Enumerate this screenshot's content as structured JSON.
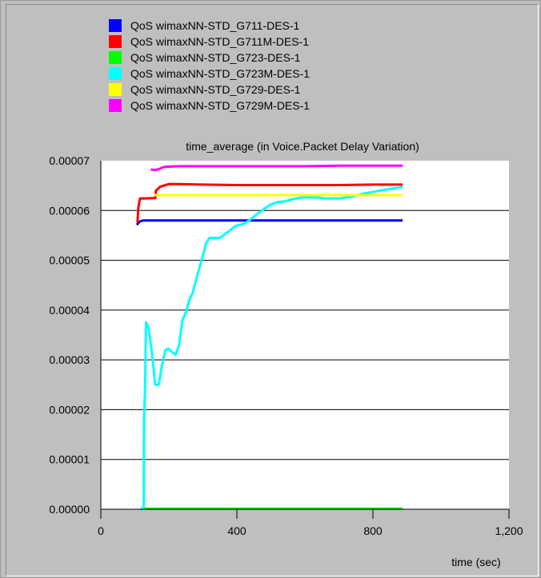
{
  "chart_data": {
    "type": "line",
    "title": "time_average (in Voice.Packet Delay Variation)",
    "xlabel": "time (sec)",
    "ylabel": "",
    "xlim": [
      0,
      1200
    ],
    "ylim": [
      0,
      7e-05
    ],
    "x_ticks": [
      0,
      400,
      800,
      1200
    ],
    "x_tick_labels": [
      "0",
      "400",
      "800",
      "1,200"
    ],
    "y_ticks": [
      0,
      1e-05,
      2e-05,
      3e-05,
      4e-05,
      5e-05,
      6e-05,
      7e-05
    ],
    "y_tick_labels": [
      "0.00000",
      "0.00001",
      "0.00002",
      "0.00003",
      "0.00004",
      "0.00005",
      "0.00006",
      "0.00007"
    ],
    "grid": "horizontal",
    "legend_position": "top",
    "series": [
      {
        "name": "QoS wimaxNN-STD_G711-DES-1",
        "color": "#0000ff",
        "x": [
          108,
          115,
          125,
          140,
          200,
          400,
          600,
          884
        ],
        "y": [
          5.73e-05,
          5.78e-05,
          5.8e-05,
          5.8e-05,
          5.8e-05,
          5.8e-05,
          5.8e-05,
          5.8e-05
        ]
      },
      {
        "name": "QoS wimaxNN-STD_G711M-DES-1",
        "color": "#ff0000",
        "x": [
          108,
          110,
          115,
          120,
          160,
          162,
          175,
          190,
          200,
          220,
          300,
          400,
          500,
          600,
          700,
          800,
          884
        ],
        "y": [
          5.78e-05,
          6.05e-05,
          6.24e-05,
          6.24e-05,
          6.25e-05,
          6.4e-05,
          6.48e-05,
          6.51e-05,
          6.53e-05,
          6.53e-05,
          6.52e-05,
          6.51e-05,
          6.51e-05,
          6.51e-05,
          6.51e-05,
          6.52e-05,
          6.52e-05
        ]
      },
      {
        "name": "QoS wimaxNN-STD_G723-DES-1",
        "color": "#00ff00",
        "x": [
          120,
          300,
          600,
          884
        ],
        "y": [
          1e-07,
          1e-07,
          1e-07,
          1e-07
        ]
      },
      {
        "name": "QoS wimaxNN-STD_G723M-DES-1",
        "color": "#00ffff",
        "x": [
          120,
          126,
          127,
          130,
          133,
          140,
          150,
          160,
          170,
          180,
          190,
          200,
          210,
          220,
          230,
          240,
          250,
          260,
          270,
          280,
          290,
          300,
          310,
          320,
          330,
          340,
          350,
          360,
          370,
          380,
          390,
          400,
          420,
          440,
          460,
          480,
          500,
          520,
          540,
          560,
          580,
          600,
          620,
          640,
          660,
          680,
          700,
          720,
          740,
          760,
          780,
          800,
          820,
          840,
          860,
          884
        ],
        "y": [
          1e-07,
          1e-07,
          1.8e-05,
          2.45e-05,
          3.75e-05,
          3.65e-05,
          3.15e-05,
          2.5e-05,
          2.5e-05,
          2.9e-05,
          3.2e-05,
          3.22e-05,
          3.15e-05,
          3.1e-05,
          3.3e-05,
          3.8e-05,
          3.95e-05,
          4.2e-05,
          4.35e-05,
          4.6e-05,
          4.85e-05,
          5.1e-05,
          5.35e-05,
          5.45e-05,
          5.45e-05,
          5.45e-05,
          5.45e-05,
          5.5e-05,
          5.55e-05,
          5.6e-05,
          5.66e-05,
          5.7e-05,
          5.73e-05,
          5.82e-05,
          5.93e-05,
          6.03e-05,
          6.12e-05,
          6.17e-05,
          6.18e-05,
          6.22e-05,
          6.25e-05,
          6.27e-05,
          6.26e-05,
          6.26e-05,
          6.24e-05,
          6.24e-05,
          6.24e-05,
          6.26e-05,
          6.28e-05,
          6.32e-05,
          6.35e-05,
          6.37e-05,
          6.4e-05,
          6.42e-05,
          6.44e-05,
          6.47e-05
        ]
      },
      {
        "name": "QoS wimaxNN-STD_G729-DES-1",
        "color": "#ffff00",
        "x": [
          160,
          200,
          400,
          600,
          884
        ],
        "y": [
          6.31e-05,
          6.31e-05,
          6.31e-05,
          6.31e-05,
          6.31e-05
        ]
      },
      {
        "name": "QoS wimaxNN-STD_G729M-DES-1",
        "color": "#ff00ff",
        "x": [
          150,
          160,
          170,
          180,
          190,
          200,
          230,
          300,
          400,
          500,
          600,
          700,
          800,
          884
        ],
        "y": [
          6.82e-05,
          6.81e-05,
          6.83e-05,
          6.86e-05,
          6.88e-05,
          6.88e-05,
          6.89e-05,
          6.89e-05,
          6.89e-05,
          6.89e-05,
          6.89e-05,
          6.9e-05,
          6.9e-05,
          6.9e-05
        ]
      }
    ]
  }
}
